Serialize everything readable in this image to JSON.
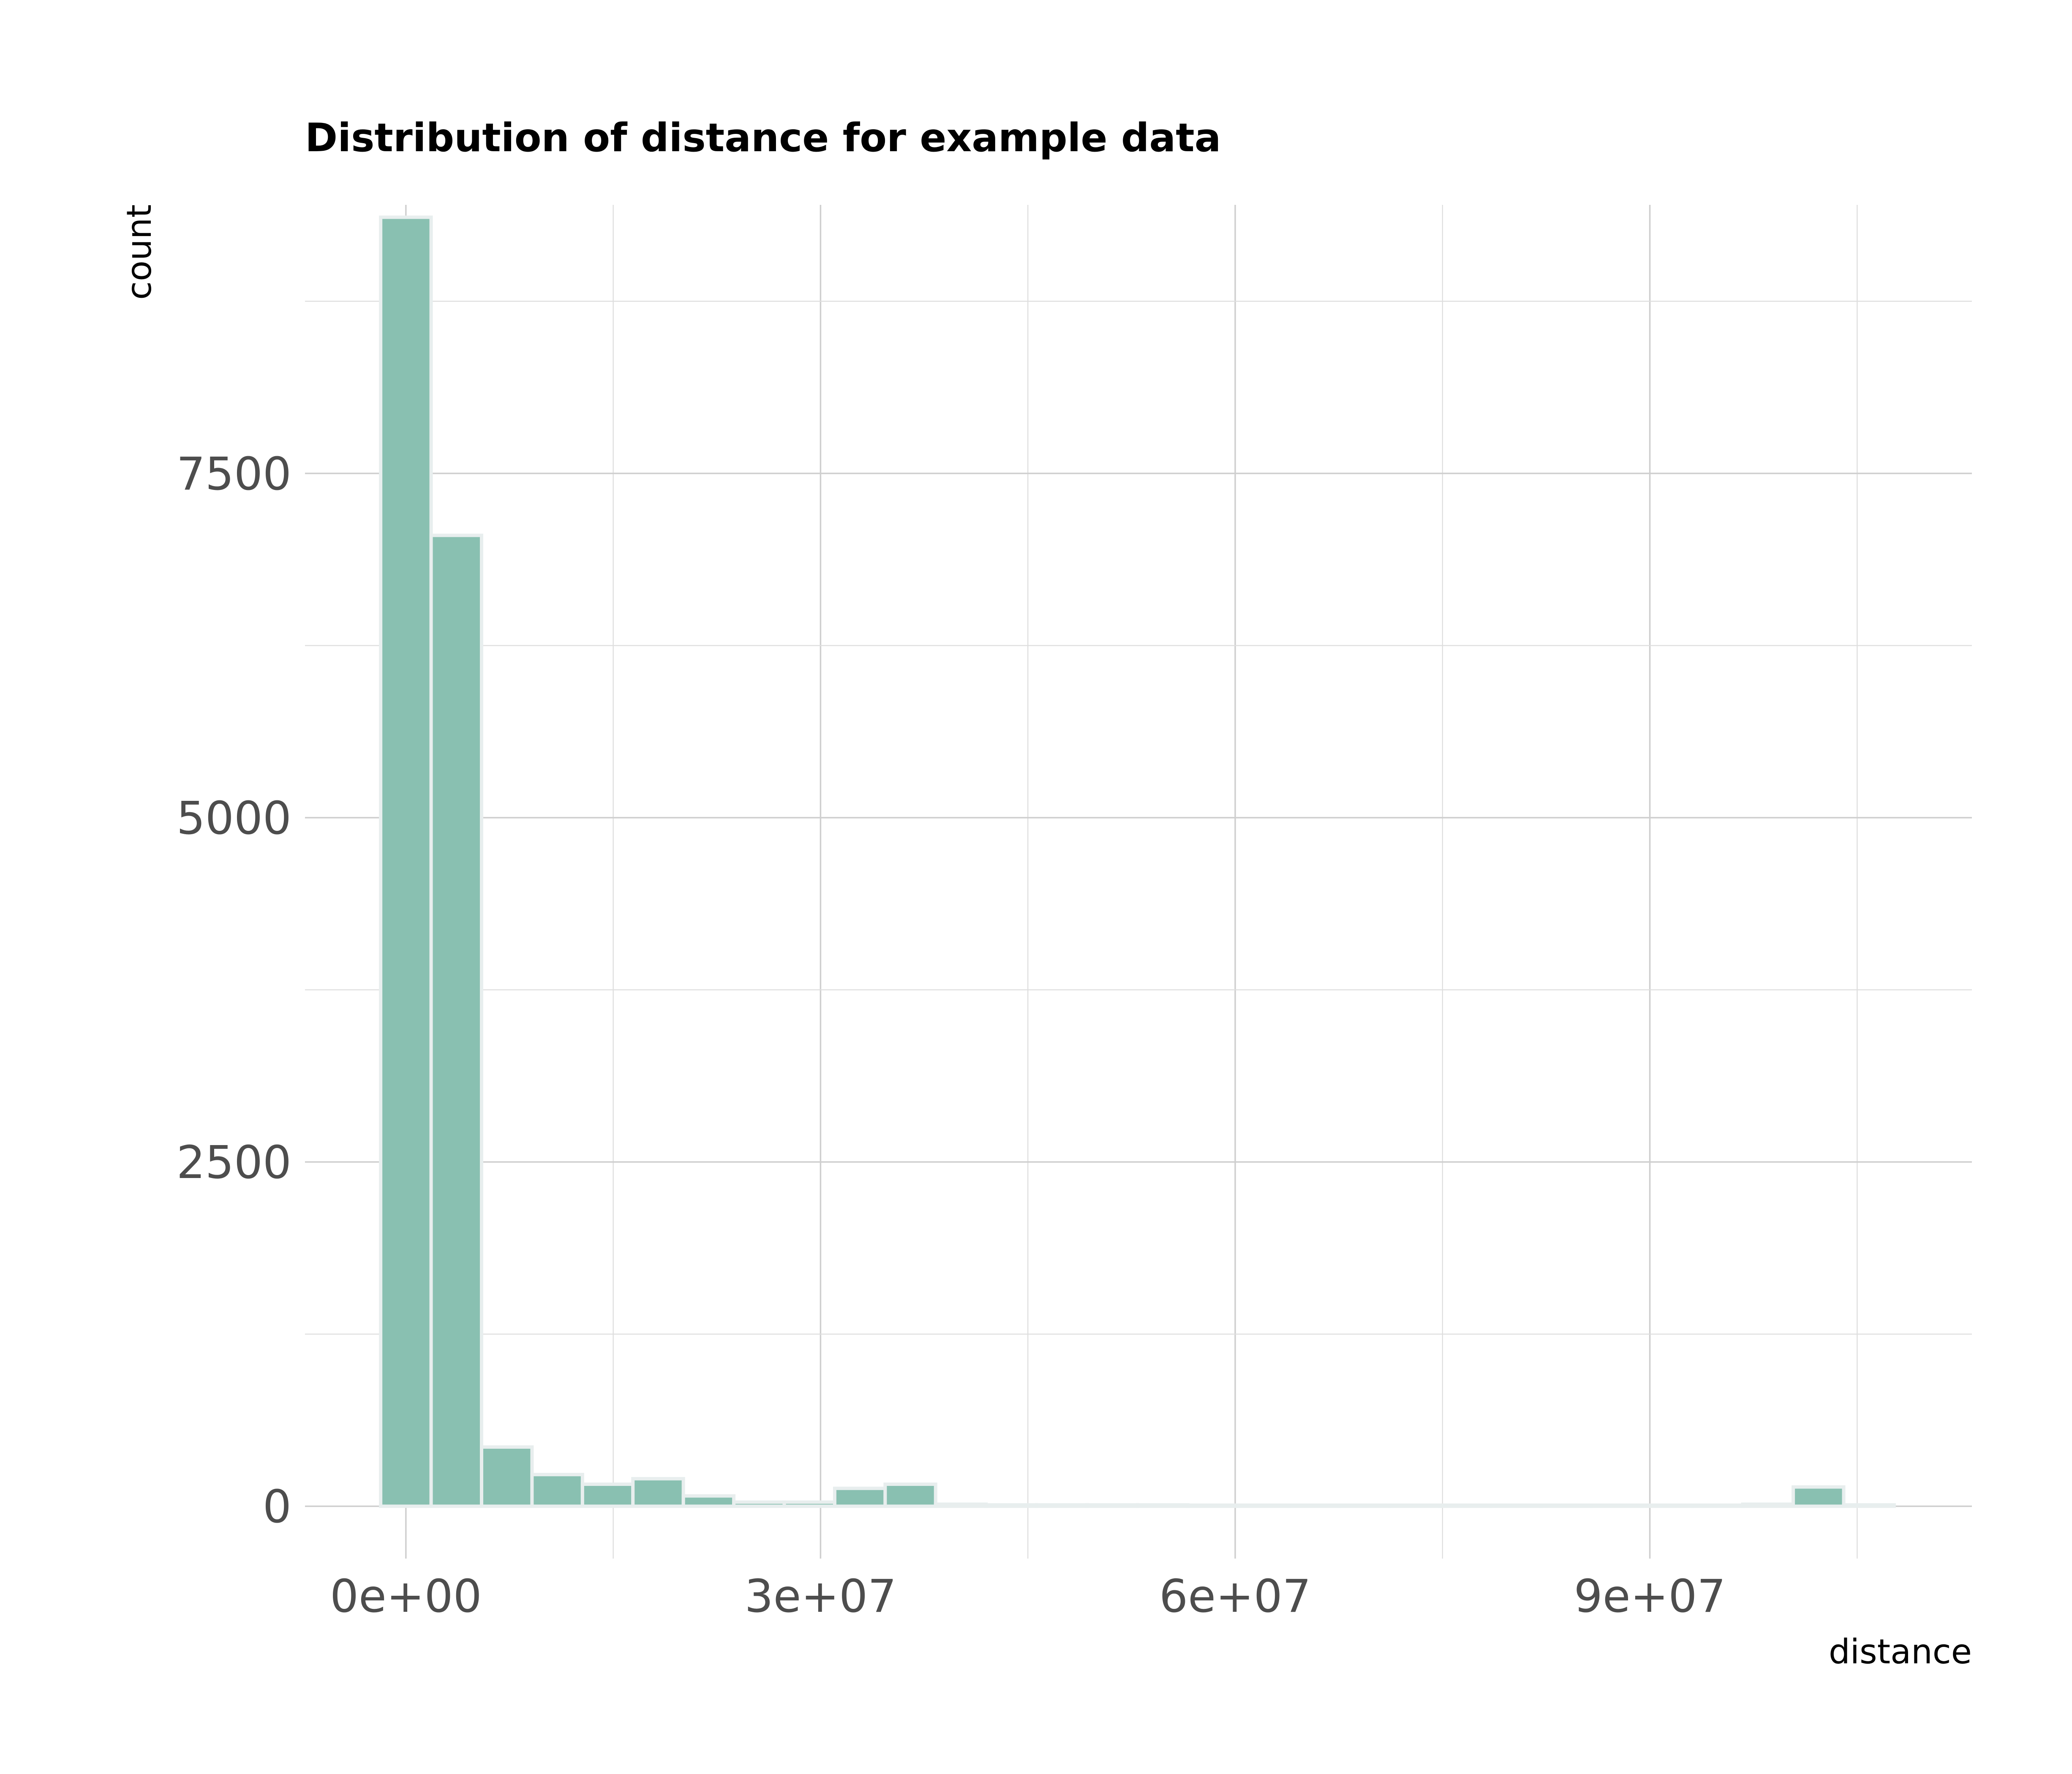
{
  "chart_data": {
    "type": "bar",
    "title": "Distribution of distance for example data",
    "xlabel": "distance",
    "ylabel": "count",
    "x_ticks": [
      "0e+00",
      "3e+07",
      "6e+07",
      "9e+07"
    ],
    "x_tick_values": [
      0,
      30000000,
      60000000,
      90000000
    ],
    "y_ticks": [
      "0",
      "2500",
      "5000",
      "7500"
    ],
    "y_tick_values": [
      0,
      2500,
      5000,
      7500
    ],
    "xlim": [
      -7300000,
      113300000
    ],
    "ylim": [
      -380,
      9450
    ],
    "bin_width": 3650000,
    "bin_centers": [
      0,
      3650000,
      7300000,
      10950000,
      14600000,
      18250000,
      21900000,
      25550000,
      29200000,
      32850000,
      36500000,
      40150000,
      43800000,
      47450000,
      51100000,
      54750000,
      58400000,
      62050000,
      65700000,
      69350000,
      73000000,
      76650000,
      80300000,
      83950000,
      87600000,
      91250000,
      94900000,
      98550000,
      102200000,
      105850000
    ],
    "values": [
      9360,
      7050,
      430,
      230,
      160,
      200,
      75,
      30,
      30,
      130,
      160,
      15,
      10,
      10,
      10,
      10,
      8,
      8,
      8,
      8,
      8,
      8,
      8,
      8,
      8,
      8,
      8,
      15,
      140,
      10
    ],
    "colors": {
      "bar_fill": "#89c0b1",
      "bar_outline": "#e8eeee",
      "grid": "#cfcfcf",
      "tick_text": "#4d4d4d",
      "background": "#ffffff"
    },
    "grid": true,
    "legend": "none"
  }
}
